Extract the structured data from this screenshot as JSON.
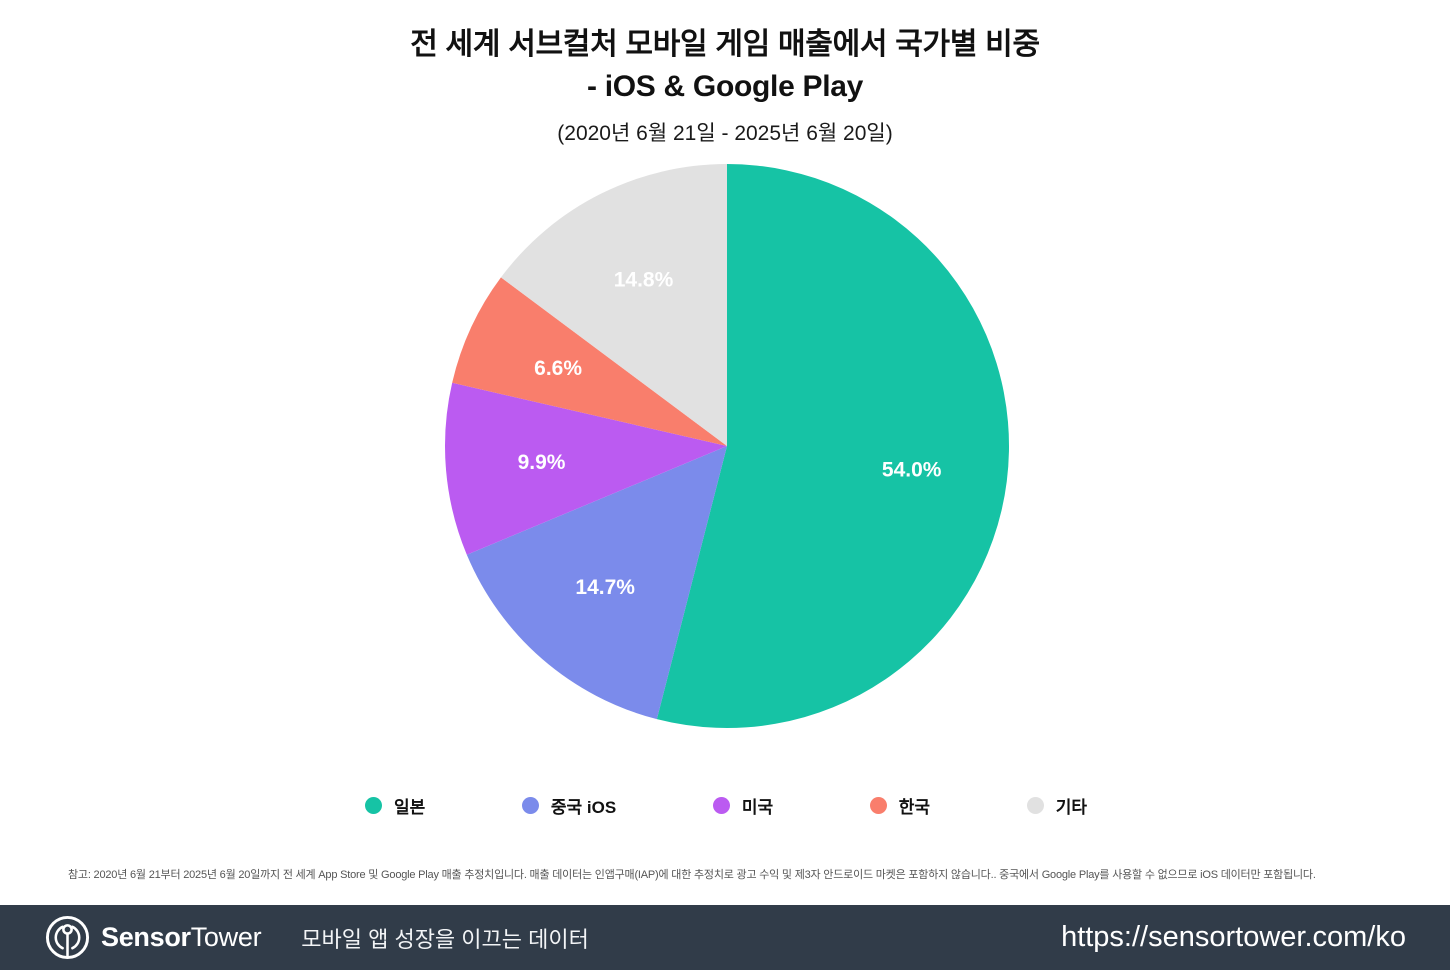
{
  "header": {
    "title_line1": "전 세계 서브컬처 모바일 게임 매출에서 국가별 비중",
    "title_line2": "- iOS & Google Play",
    "subtitle": "(2020년 6월 21일 - 2025년 6월 20일)"
  },
  "chart_data": {
    "type": "pie",
    "title": "전 세계 서브컬처 모바일 게임 매출에서 국가별 비중 - iOS & Google Play",
    "subtitle": "(2020년 6월 21일 - 2025년 6월 20일)",
    "slices": [
      {
        "label": "일본",
        "value": 54.0,
        "display": "54.0%",
        "color": "#16C3A5"
      },
      {
        "label": "중국 iOS",
        "value": 14.7,
        "display": "14.7%",
        "color": "#7B8BEB"
      },
      {
        "label": "미국",
        "value": 9.9,
        "display": "9.9%",
        "color": "#BB5BF1"
      },
      {
        "label": "한국",
        "value": 6.6,
        "display": "6.6%",
        "color": "#F97E6C"
      },
      {
        "label": "기타",
        "value": 14.8,
        "display": "14.8%",
        "color": "#E1E1E1"
      }
    ],
    "start_angle_deg": 0,
    "direction": "clockwise",
    "legend_position": "bottom",
    "slice_label_color": "#FFFFFF"
  },
  "footnote": "참고: 2020년 6월 21부터 2025년 6월 20일까지 전 세계 App Store 및 Google Play 매출 추정치입니다. 매출 데이터는 인앱구매(IAP)에 대한 추정치로 광고 수익 및 제3자 안드로이드 마켓은 포함하지 않습니다.. 중국에서 Google Play를 사용할 수 없으므로 iOS 데이터만 포함됩니다.",
  "footer": {
    "brand_bold": "Sensor",
    "brand_light": "Tower",
    "tagline": "모바일 앱 성장을 이끄는 데이터",
    "url": "https://sensortower.com/ko",
    "background_color": "#313C49"
  }
}
